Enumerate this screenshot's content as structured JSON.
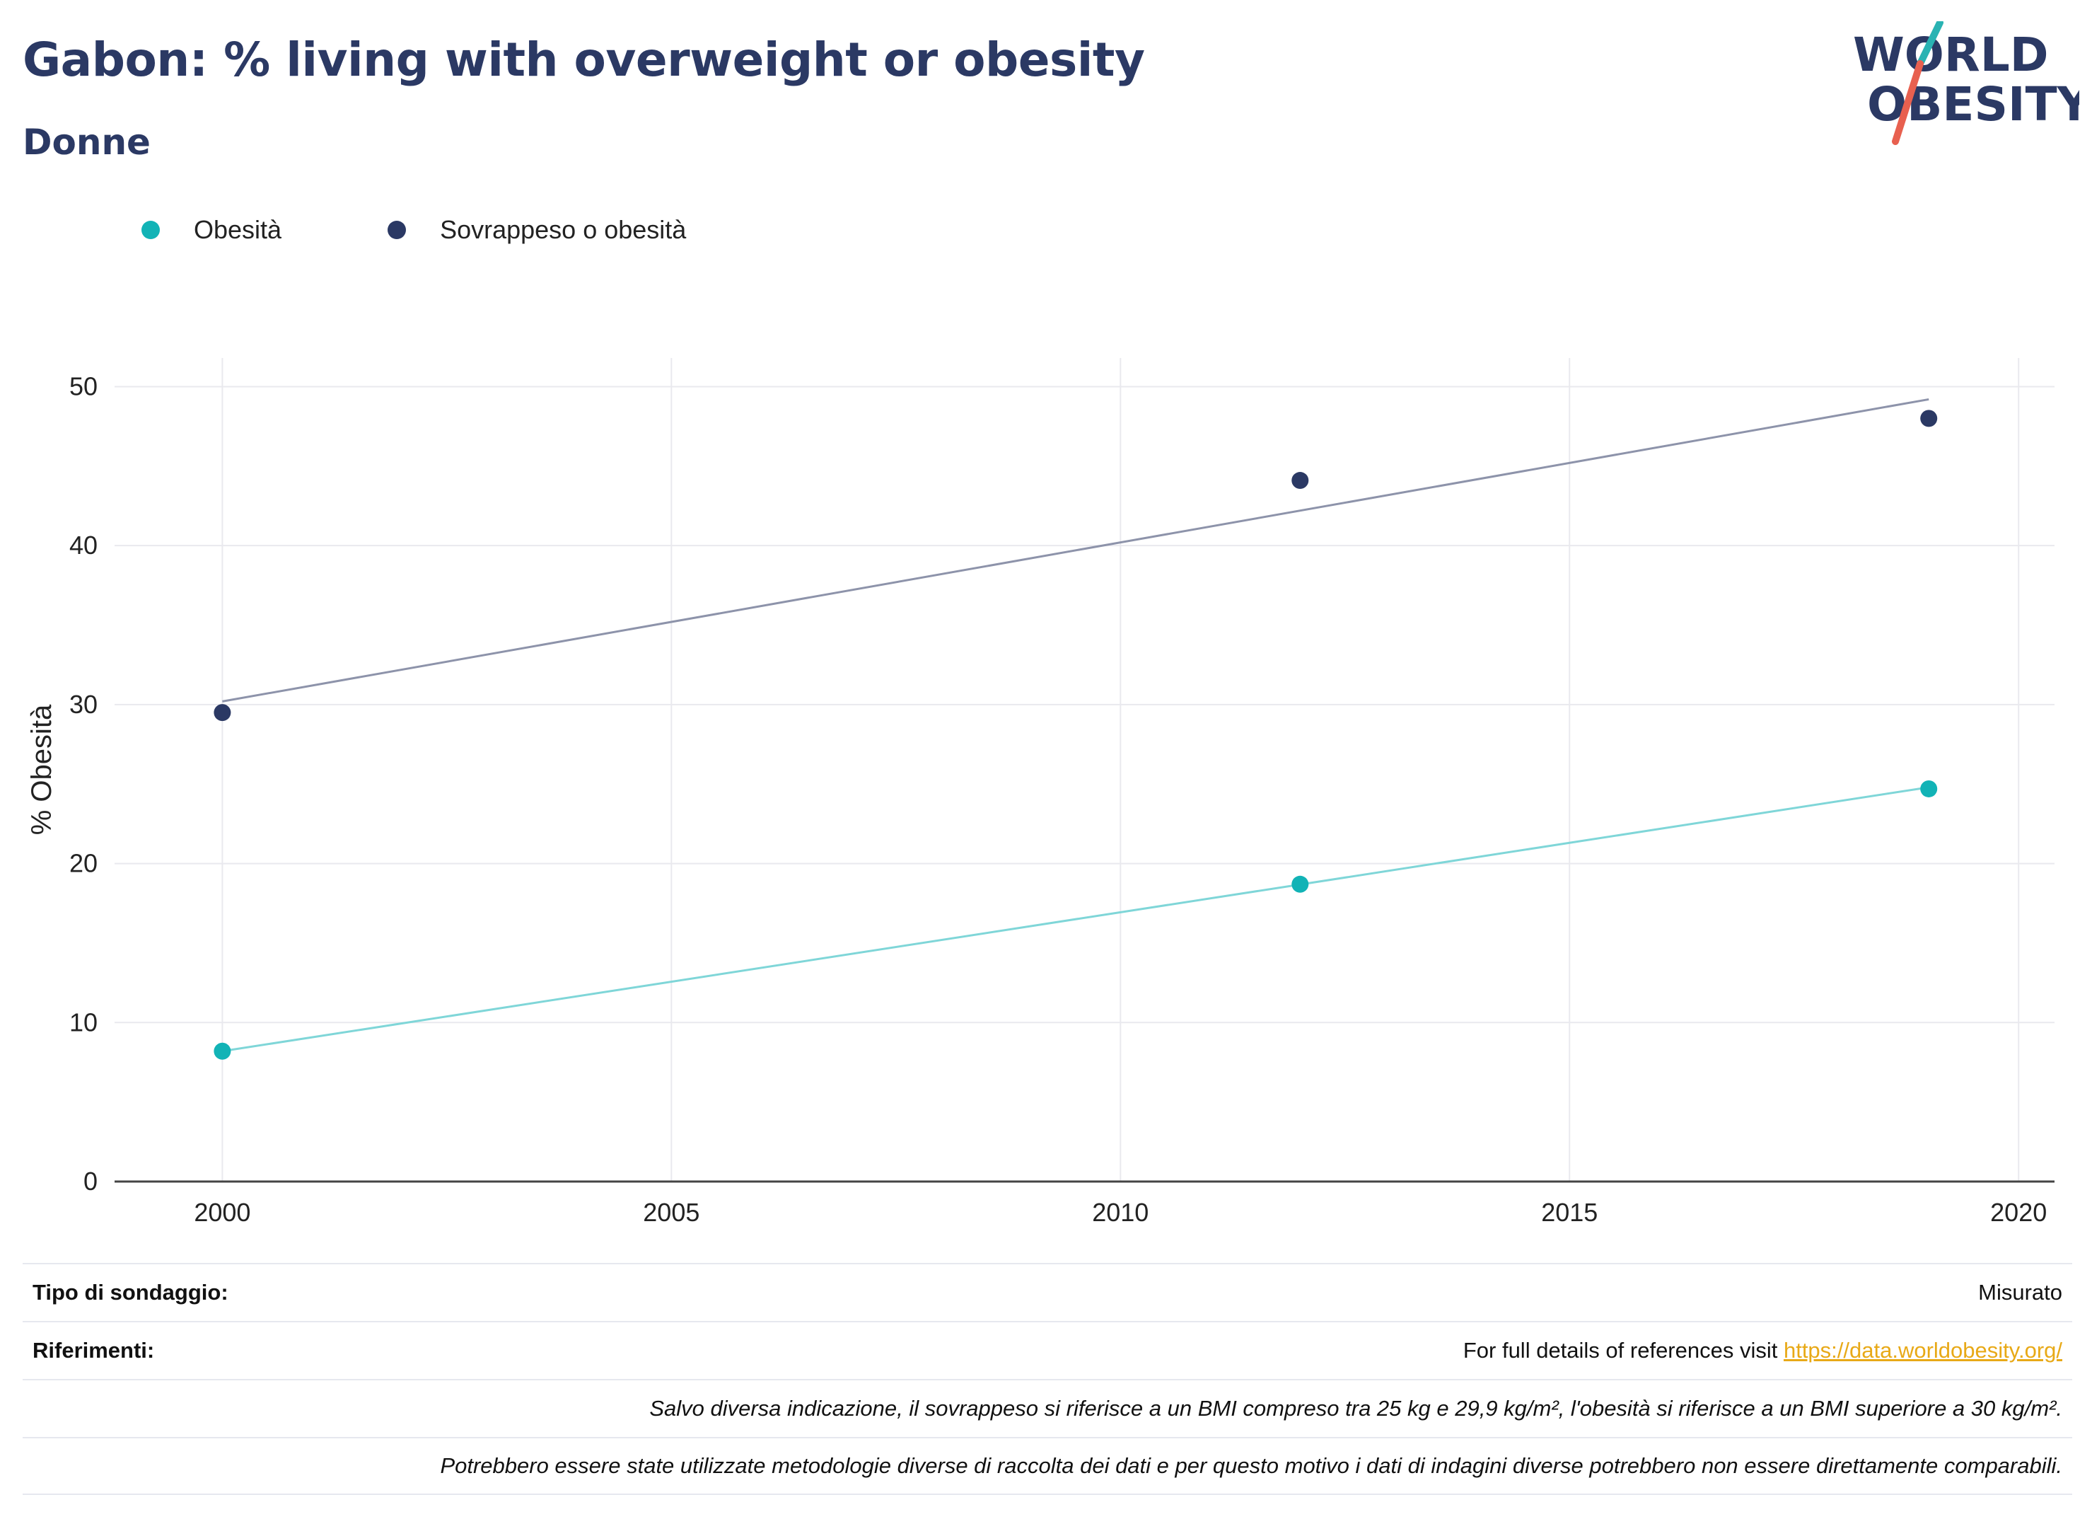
{
  "header": {
    "title": "Gabon: % living with overweight or obesity",
    "subtitle": "Donne"
  },
  "logo": {
    "line1": "WORLD",
    "line2": "OBESITY",
    "color_text": "#2b3964",
    "color_slash_teal": "#2ab3b3",
    "color_slash_red": "#e8604f"
  },
  "legend": [
    {
      "label": "Obesità",
      "color": "#12b3b6"
    },
    {
      "label": "Sovrappeso o obesità",
      "color": "#2b3964"
    }
  ],
  "chart_data": {
    "type": "scatter",
    "xlabel": "",
    "ylabel": "% Obesità",
    "xlim": [
      1998.8,
      2020.4
    ],
    "ylim": [
      0,
      51.8
    ],
    "xticks": [
      2000,
      2005,
      2010,
      2015,
      2020
    ],
    "yticks": [
      0,
      10,
      20,
      30,
      40,
      50
    ],
    "grid": true,
    "legend_position": "top-left",
    "series": [
      {
        "name": "Obesità",
        "color": "#12b3b6",
        "trend_color": "#7fd6d8",
        "points": [
          {
            "x": 2000,
            "y": 8.2
          },
          {
            "x": 2012,
            "y": 18.7
          },
          {
            "x": 2019,
            "y": 24.7
          }
        ],
        "trend": [
          {
            "x": 2000,
            "y": 8.2
          },
          {
            "x": 2019,
            "y": 24.8
          }
        ]
      },
      {
        "name": "Sovrappeso o obesità",
        "color": "#2b3964",
        "trend_color": "#8d93aa",
        "points": [
          {
            "x": 2000,
            "y": 29.5
          },
          {
            "x": 2012,
            "y": 44.1
          },
          {
            "x": 2019,
            "y": 48.0
          }
        ],
        "trend": [
          {
            "x": 2000,
            "y": 30.2
          },
          {
            "x": 2019,
            "y": 49.2
          }
        ]
      }
    ]
  },
  "footer": {
    "survey_label": "Tipo di sondaggio:",
    "survey_value": "Misurato",
    "refs_label": "Riferimenti:",
    "refs_text": "For full details of references visit ",
    "refs_link": "https://data.worldobesity.org/",
    "note1": "Salvo diversa indicazione, il sovrappeso si riferisce a un BMI compreso tra 25 kg e 29,9 kg/m², l'obesità si riferisce a un BMI superiore a 30 kg/m².",
    "note2": "Potrebbero essere state utilizzate metodologie diverse di raccolta dei dati e per questo motivo i dati di indagini diverse potrebbero non essere direttamente comparabili."
  }
}
